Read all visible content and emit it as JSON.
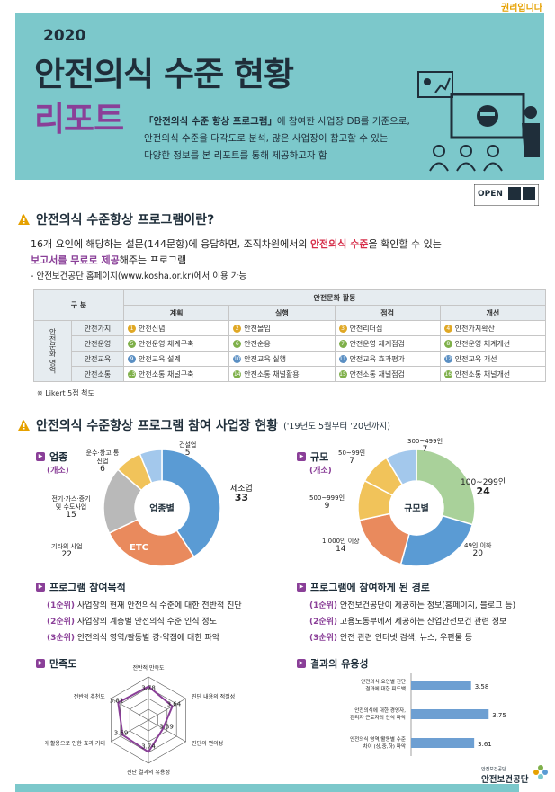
{
  "header": {
    "slogan": "권리입니다",
    "year": "2020",
    "title_line1": "안전의식 수준 현황",
    "title_line2": "리포트",
    "intro_bold": "「안전의식 수준 향상 프로그램」",
    "intro_rest1": "에 참여한 사업장 DB를 기준으로,",
    "intro_line2": "안전의식 수준을 다각도로 분석, 많은 사업장이 참고할 수 있는",
    "intro_line3": "다양한  정보를 본 리포트를 통해 제공하고자 함",
    "open_label": "OPEN"
  },
  "section1": {
    "title": "안전의식 수준향상 프로그램이란?",
    "line1_a": "16개 요인에 해당하는 설문(144문항)에 응답하면, 조직차원에서의 ",
    "line1_b": "안전의식 수준",
    "line1_c": "을 확인할 수 있는",
    "line2_a": "보고서를 무료로 제공",
    "line2_b": "해주는 프로그램",
    "line3": "- 안전보건공단 홈페이지(www.kosha.or.kr)에서 이용 가능",
    "table": {
      "corner": "구 분",
      "group_header": "안전문화 활동",
      "columns": [
        "계획",
        "실행",
        "점검",
        "개선"
      ],
      "vertical_label": "안전문화 영역",
      "rows": [
        {
          "label": "안전가치",
          "cells": [
            "안전신념",
            "안전몰입",
            "안전리더십",
            "안전가치확산"
          ],
          "nums": [
            "1",
            "2",
            "3",
            "4"
          ]
        },
        {
          "label": "안전운영",
          "cells": [
            "안전운영 체계구축",
            "안전순응",
            "안전운영 체계점검",
            "안전운영 체계개선"
          ],
          "nums": [
            "5",
            "6",
            "7",
            "8"
          ]
        },
        {
          "label": "안전교육",
          "cells": [
            "안전교육 설계",
            "안전교육 실행",
            "안전교육 효과평가",
            "안전교육 개선"
          ],
          "nums": [
            "9",
            "10",
            "11",
            "12"
          ]
        },
        {
          "label": "안전소통",
          "cells": [
            "안전소통 채널구축",
            "안전소통 채널활용",
            "안전소통 채널점검",
            "안전소통 채널개선"
          ],
          "nums": [
            "13",
            "14",
            "15",
            "16"
          ]
        }
      ]
    },
    "note": "※ Likert 5점 척도"
  },
  "section2": {
    "title": "안전의식 수준향상 프로그램 참여 사업장 현황",
    "period": "('19년도 5월부터 '20년까지)",
    "industry": {
      "title": "업종",
      "paren": "(개소)",
      "center": "업종별",
      "etc_label": "ETC"
    },
    "scale": {
      "title": "규모",
      "paren": "(개소)",
      "center": "규모별"
    },
    "purpose": {
      "title": "프로그램 참여목적",
      "items": [
        {
          "rank": "(1순위)",
          "text": " 사업장의 현재 안전의식 수준에 대한 전반적 진단"
        },
        {
          "rank": "(2순위)",
          "text": " 사업장의 계층별 안전의식 수준 인식 정도"
        },
        {
          "rank": "(3순위)",
          "text": " 안전의식 영역/활동별 강·약점에 대한 파악"
        }
      ]
    },
    "route": {
      "title": "프로그램에 참여하게 된 경로",
      "items": [
        {
          "rank": "(1순위)",
          "text": " 안전보건공단이 제공하는 정보(홈페이지, 블로그 등)"
        },
        {
          "rank": "(2순위)",
          "text": " 고용노동부에서 제공하는 산업안전보건 관련 정보"
        },
        {
          "rank": "(3순위)",
          "text": " 안전 관련 인터넷 검색, 뉴스, 우편물 등"
        }
      ]
    },
    "satisfaction": {
      "title": "만족도"
    },
    "usefulness": {
      "title": "결과의 유용성"
    }
  },
  "chart_data": [
    {
      "type": "pie",
      "title": "업종별",
      "labels": [
        "제조업",
        "기타의 사업",
        "전기·가스·증기 및 수도사업",
        "운수·창고 통신업",
        "건설업"
      ],
      "values": [
        33,
        22,
        15,
        6,
        5
      ],
      "colors": [
        "#5a9bd4",
        "#e98a5d",
        "#b9b9b9",
        "#f1c35a",
        "#a3c8ec"
      ]
    },
    {
      "type": "pie",
      "title": "규모별",
      "labels": [
        "100~299인",
        "49인 이하",
        "1,000인 이상",
        "500~999인",
        "50~99인",
        "300~499인"
      ],
      "values": [
        24,
        20,
        14,
        9,
        7,
        7
      ],
      "colors": [
        "#a9d19a",
        "#5a9bd4",
        "#e98a5d",
        "#f1c35a",
        "#f1c35a",
        "#a3c8ec"
      ]
    },
    {
      "type": "radar",
      "title": "만족도",
      "categories": [
        "전반적 만족도",
        "진단 내용의 적절성",
        "진단의 편의성",
        "진단 결과의 유용성",
        "진단 결과의 활용으로 인한 효과 기대",
        "전반적 추천도"
      ],
      "values": [
        3.78,
        3.64,
        3.39,
        3.74,
        3.69,
        3.81
      ]
    },
    {
      "type": "bar",
      "title": "결과의 유용성",
      "categories": [
        "안전의식 요인별 진단 결과에 대한 피드백",
        "안전의식에 대한 경영자, 관리자 근로자의 인식 파악",
        "안전의식 영역/활동별 수준 차이 (상,중,하) 파악"
      ],
      "values": [
        3.58,
        3.75,
        3.61
      ],
      "color": "#6d9fd2"
    }
  ],
  "footer": {
    "org_small": "안전보건공단",
    "org": "안전보건공단"
  }
}
